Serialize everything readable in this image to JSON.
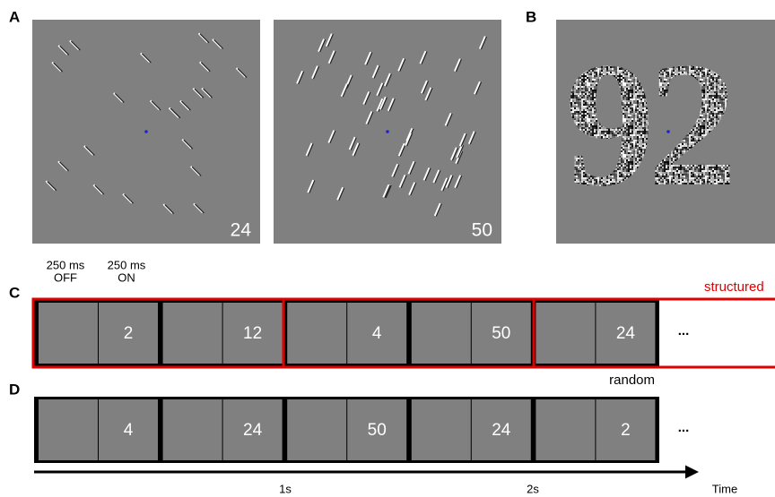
{
  "panel_a": {
    "label": "A",
    "images": [
      {
        "count": 24
      },
      {
        "count": 50
      }
    ]
  },
  "panel_b": {
    "label": "B",
    "digits": "92"
  },
  "panel_c": {
    "label": "C",
    "off_label": [
      "250 ms",
      "OFF"
    ],
    "on_label": [
      "250 ms",
      "ON"
    ],
    "sequence_label": "structured",
    "numbers": [
      2,
      12,
      4,
      50,
      24
    ],
    "ellipsis": "..."
  },
  "panel_d": {
    "label": "D",
    "sequence_label": "random",
    "numbers": [
      4,
      24,
      50,
      24,
      2
    ],
    "ellipsis": "..."
  },
  "timeline": {
    "ticks": [
      "1s",
      "2s"
    ],
    "axis_label": "Time"
  }
}
